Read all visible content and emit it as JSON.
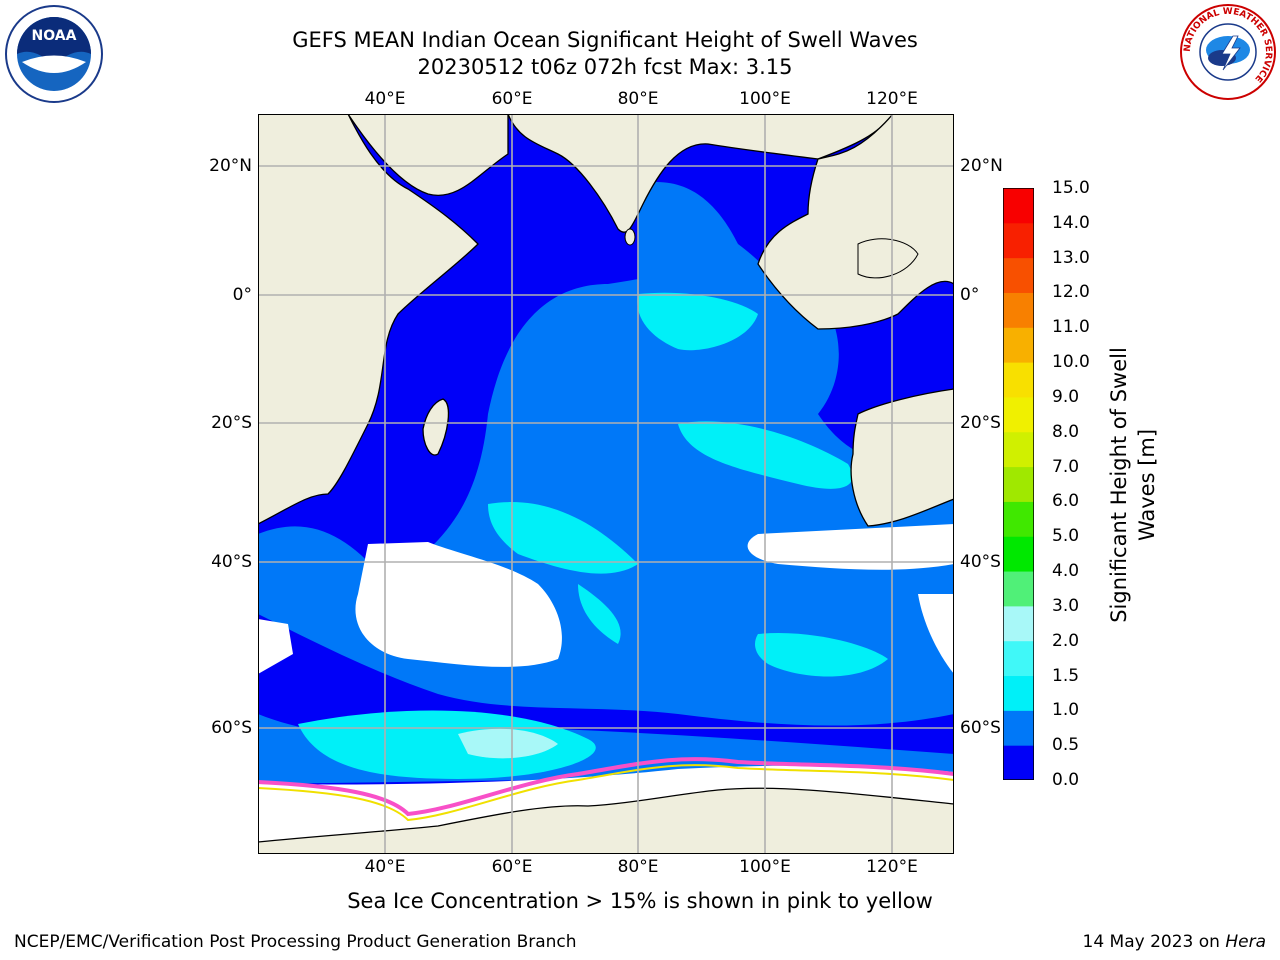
{
  "title_line1": "GEFS MEAN Indian Ocean Significant Height of Swell Waves",
  "title_line2": "20230512 t06z 072h fcst   Max: 3.15",
  "lon_labels": [
    "40°E",
    "60°E",
    "80°E",
    "100°E",
    "120°E"
  ],
  "lat_labels": [
    "20°N",
    "0°",
    "20°S",
    "40°S",
    "60°S"
  ],
  "colorbar": {
    "title_line1": "Significant Height of Swell",
    "title_line2": "Waves [m]",
    "ticks": [
      "0.0",
      "0.5",
      "1.0",
      "1.5",
      "2.0",
      "3.0",
      "4.0",
      "5.0",
      "6.0",
      "7.0",
      "8.0",
      "9.0",
      "10.0",
      "11.0",
      "12.0",
      "13.0",
      "14.0",
      "15.0"
    ],
    "colors": [
      "#0000f8",
      "#0078f8",
      "#00f0f8",
      "#40f8f8",
      "#a8f8f8",
      "#50f078",
      "#00e800",
      "#40e800",
      "#a0e800",
      "#d0f000",
      "#f0f000",
      "#f8e000",
      "#f8b000",
      "#f88000",
      "#f85000",
      "#f82000",
      "#f80000"
    ]
  },
  "note": "Sea Ice Concentration > 15% is shown in pink to yellow",
  "footer_left": "NCEP/EMC/Verification Post Processing Product Generation Branch",
  "footer_right_prefix": "14 May 2023 on ",
  "footer_right_host": "Hera",
  "logos": {
    "noaa_text": "NOAA",
    "nws_ring_text": "NATIONAL WEATHER SERVICE"
  },
  "colors": {
    "land": "#efeedd",
    "ocean_deep": "#0000f8",
    "ocean_mid": "#0078f8",
    "ocean_light": "#00f0f8",
    "ice_edge": "#f850c8",
    "grid": "#b0b0b0"
  }
}
